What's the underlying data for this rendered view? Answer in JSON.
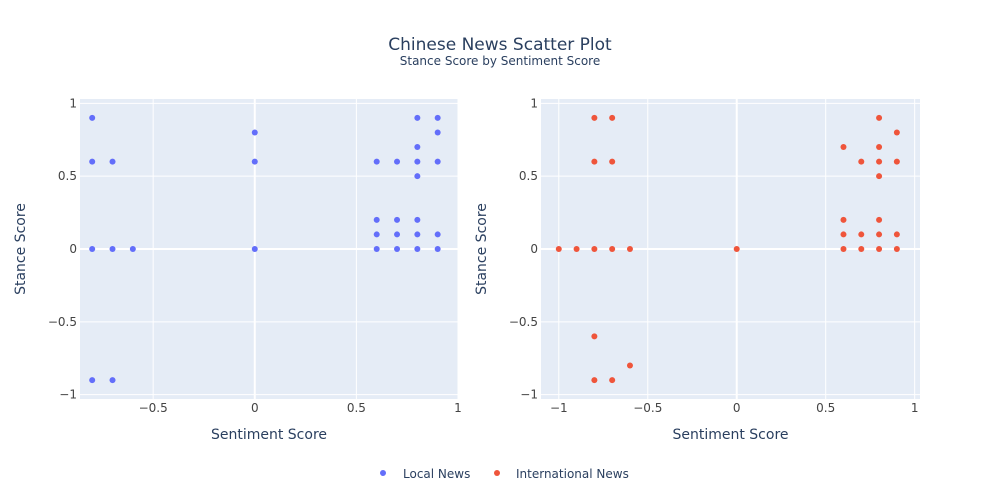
{
  "chart_data": {
    "type": "scatter",
    "title": "Chinese News Scatter Plot",
    "subtitle": "Stance Score by Sentiment Score",
    "legend_position": "bottom-center",
    "grid": true,
    "panels": [
      {
        "xlabel": "Sentiment Score",
        "ylabel": "Stance Score",
        "xlim": [
          -0.86,
          1.0
        ],
        "ylim": [
          -1.03,
          1.03
        ],
        "xticks": [
          -0.5,
          0,
          0.5,
          1
        ],
        "xtick_labels": [
          "−0.5",
          "0",
          "0.5",
          "1"
        ],
        "yticks": [
          -1,
          -0.5,
          0,
          0.5,
          1
        ],
        "ytick_labels": [
          "−1",
          "−0.5",
          "0",
          "0.5",
          "1"
        ],
        "series": "Local News",
        "points": [
          [
            -0.8,
            0.9
          ],
          [
            -0.8,
            0.6
          ],
          [
            -0.8,
            0
          ],
          [
            -0.8,
            -0.9
          ],
          [
            -0.7,
            0.6
          ],
          [
            -0.7,
            0
          ],
          [
            -0.7,
            -0.9
          ],
          [
            -0.6,
            0
          ],
          [
            0,
            0.8
          ],
          [
            0,
            0.6
          ],
          [
            0,
            0
          ],
          [
            0.6,
            0.6
          ],
          [
            0.6,
            0.2
          ],
          [
            0.6,
            0.1
          ],
          [
            0.6,
            0
          ],
          [
            0.7,
            0.6
          ],
          [
            0.7,
            0.2
          ],
          [
            0.7,
            0.1
          ],
          [
            0.7,
            0
          ],
          [
            0.8,
            0.9
          ],
          [
            0.8,
            0.7
          ],
          [
            0.8,
            0.6
          ],
          [
            0.8,
            0.5
          ],
          [
            0.8,
            0.2
          ],
          [
            0.8,
            0.1
          ],
          [
            0.8,
            0
          ],
          [
            0.9,
            0.9
          ],
          [
            0.9,
            0.8
          ],
          [
            0.9,
            0.6
          ],
          [
            0.9,
            0.1
          ],
          [
            0.9,
            0
          ]
        ]
      },
      {
        "xlabel": "Sentiment Score",
        "ylabel": "Stance Score",
        "xlim": [
          -1.1,
          1.03
        ],
        "ylim": [
          -1.03,
          1.03
        ],
        "xticks": [
          -1,
          -0.5,
          0,
          0.5,
          1
        ],
        "xtick_labels": [
          "−1",
          "−0.5",
          "0",
          "0.5",
          "1"
        ],
        "yticks": [
          -1,
          -0.5,
          0,
          0.5,
          1
        ],
        "ytick_labels": [
          "−1",
          "−0.5",
          "0",
          "0.5",
          "1"
        ],
        "series": "International News",
        "points": [
          [
            -1,
            0
          ],
          [
            -0.9,
            0
          ],
          [
            -0.8,
            0.9
          ],
          [
            -0.8,
            0.6
          ],
          [
            -0.8,
            0
          ],
          [
            -0.8,
            -0.6
          ],
          [
            -0.8,
            -0.9
          ],
          [
            -0.7,
            0.9
          ],
          [
            -0.7,
            0.6
          ],
          [
            -0.7,
            0
          ],
          [
            -0.7,
            -0.9
          ],
          [
            -0.6,
            0
          ],
          [
            -0.6,
            -0.8
          ],
          [
            0,
            0
          ],
          [
            0.6,
            0.7
          ],
          [
            0.6,
            0.2
          ],
          [
            0.6,
            0.1
          ],
          [
            0.6,
            0
          ],
          [
            0.7,
            0.6
          ],
          [
            0.7,
            0.1
          ],
          [
            0.7,
            0
          ],
          [
            0.8,
            0.9
          ],
          [
            0.8,
            0.7
          ],
          [
            0.8,
            0.6
          ],
          [
            0.8,
            0.5
          ],
          [
            0.8,
            0.2
          ],
          [
            0.8,
            0.1
          ],
          [
            0.8,
            0
          ],
          [
            0.9,
            0.8
          ],
          [
            0.9,
            0.6
          ],
          [
            0.9,
            0.1
          ],
          [
            0.9,
            0
          ]
        ]
      }
    ],
    "series": [
      {
        "name": "Local News",
        "color": "#636efa"
      },
      {
        "name": "International News",
        "color": "#ef553b"
      }
    ]
  },
  "colors": {
    "plot_bg": "#e5ecf6",
    "grid": "#ffffff",
    "text": "#2a3f5f",
    "tick_text": "#444444"
  }
}
